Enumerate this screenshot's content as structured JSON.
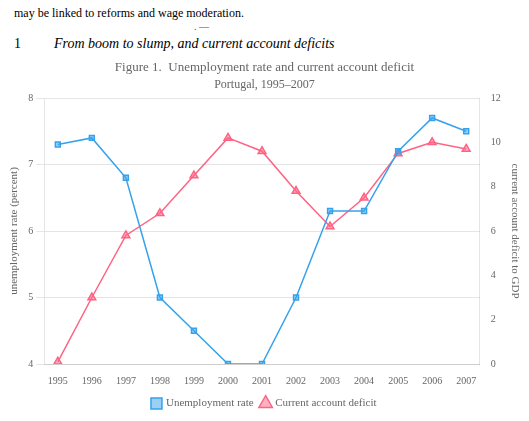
{
  "chart_data": {
    "type": "line",
    "title": "Figure 1.  Unemployment rate and current account deficit",
    "subtitle": "Portugal, 1995–2007",
    "annotations": [
      "may be linked to reforms and wage moderation.",
      ". ––",
      "1",
      "From boom to slump, and current account deficits"
    ],
    "x": [
      1995,
      1996,
      1997,
      1998,
      1999,
      2000,
      2001,
      2002,
      2003,
      2004,
      2005,
      2006,
      2007
    ],
    "xlim": [
      1994.6,
      2007.4
    ],
    "xticks": [
      1995,
      1996,
      1997,
      1998,
      1999,
      2000,
      2001,
      2002,
      2003,
      2004,
      2005,
      2006,
      2007
    ],
    "ylim": [
      4,
      8
    ],
    "yticks": [
      4,
      5,
      6,
      7,
      8
    ],
    "y2lim": [
      0,
      12
    ],
    "y2ticks": [
      0,
      2,
      4,
      6,
      8,
      10,
      12
    ],
    "ylabel": "unemployment rate (percent)",
    "y2label": "current account deficit to GDP",
    "grid": true,
    "legend": "bottom",
    "series": [
      {
        "name": "Unemployment rate",
        "marker": "square",
        "values": [
          7.3,
          7.4,
          6.8,
          5.0,
          4.5,
          4.0,
          4.0,
          5.0,
          6.3,
          6.3,
          7.2,
          7.7,
          7.5
        ]
      },
      {
        "name": "Current account deficit",
        "marker": "triangle",
        "axis": "y2",
        "values": [
          0.1,
          3.0,
          5.8,
          6.8,
          8.5,
          10.2,
          9.6,
          7.8,
          6.2,
          7.5,
          9.5,
          10.0,
          9.7
        ]
      }
    ]
  }
}
